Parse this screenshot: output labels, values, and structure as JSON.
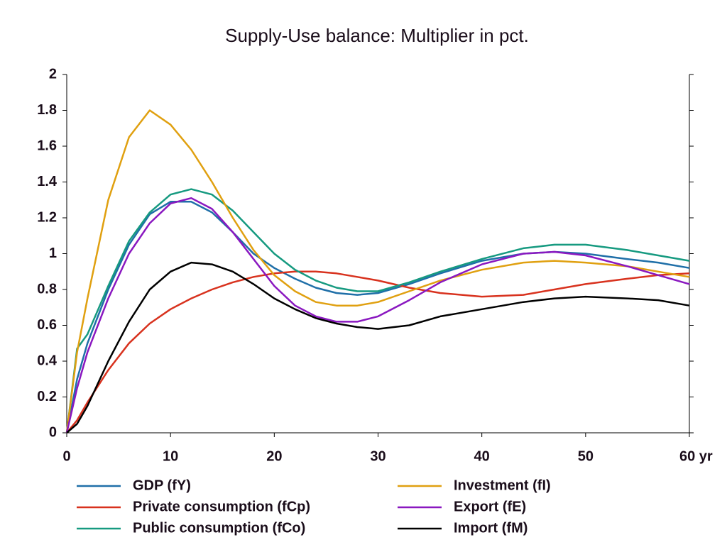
{
  "chart_data": {
    "type": "line",
    "title": "Supply-Use balance: Multiplier in pct.",
    "x": [
      0,
      1,
      2,
      4,
      6,
      8,
      10,
      12,
      14,
      16,
      18,
      20,
      22,
      24,
      26,
      28,
      30,
      33,
      36,
      40,
      44,
      47,
      50,
      54,
      57,
      60
    ],
    "series": [
      {
        "name": "GDP (fY)",
        "color": "#1f6fa8",
        "values": [
          0,
          0.3,
          0.5,
          0.8,
          1.05,
          1.22,
          1.29,
          1.29,
          1.23,
          1.12,
          1.0,
          0.92,
          0.86,
          0.81,
          0.78,
          0.77,
          0.78,
          0.83,
          0.89,
          0.96,
          1.0,
          1.01,
          1.0,
          0.97,
          0.95,
          0.92
        ]
      },
      {
        "name": "Private consumption (fCp)",
        "color": "#d8321e",
        "values": [
          0,
          0.07,
          0.17,
          0.35,
          0.5,
          0.61,
          0.69,
          0.75,
          0.8,
          0.84,
          0.87,
          0.89,
          0.9,
          0.9,
          0.89,
          0.87,
          0.85,
          0.81,
          0.78,
          0.76,
          0.77,
          0.8,
          0.83,
          0.86,
          0.88,
          0.89
        ]
      },
      {
        "name": "Public consumption (fCo)",
        "color": "#169a80",
        "values": [
          0,
          0.47,
          0.55,
          0.82,
          1.07,
          1.23,
          1.33,
          1.36,
          1.33,
          1.24,
          1.12,
          1.0,
          0.91,
          0.85,
          0.81,
          0.79,
          0.79,
          0.84,
          0.9,
          0.97,
          1.03,
          1.05,
          1.05,
          1.02,
          0.99,
          0.96
        ]
      },
      {
        "name": "Investment (fI)",
        "color": "#e0a010",
        "values": [
          0,
          0.45,
          0.75,
          1.3,
          1.65,
          1.8,
          1.72,
          1.58,
          1.4,
          1.2,
          1.02,
          0.88,
          0.79,
          0.73,
          0.71,
          0.71,
          0.73,
          0.79,
          0.85,
          0.91,
          0.95,
          0.96,
          0.95,
          0.93,
          0.9,
          0.87
        ]
      },
      {
        "name": "Export (fE)",
        "color": "#8a18c0",
        "values": [
          0,
          0.25,
          0.45,
          0.75,
          1.0,
          1.17,
          1.28,
          1.31,
          1.25,
          1.12,
          0.97,
          0.82,
          0.71,
          0.65,
          0.62,
          0.62,
          0.65,
          0.74,
          0.84,
          0.94,
          1.0,
          1.01,
          0.99,
          0.93,
          0.88,
          0.83
        ]
      },
      {
        "name": "Import (fM)",
        "color": "#000000",
        "values": [
          0,
          0.05,
          0.15,
          0.4,
          0.62,
          0.8,
          0.9,
          0.95,
          0.94,
          0.9,
          0.83,
          0.75,
          0.69,
          0.64,
          0.61,
          0.59,
          0.58,
          0.6,
          0.65,
          0.69,
          0.73,
          0.75,
          0.76,
          0.75,
          0.74,
          0.71
        ]
      }
    ],
    "xlim": [
      0,
      60
    ],
    "xticks": [
      0,
      10,
      20,
      30,
      40,
      50,
      {
        "value": 60,
        "label": "60 yr"
      }
    ],
    "ylim": [
      0,
      2
    ],
    "yticks": [
      0,
      0.2,
      0.4,
      0.6,
      0.8,
      1,
      1.2,
      1.4,
      1.6,
      1.8,
      2
    ]
  }
}
